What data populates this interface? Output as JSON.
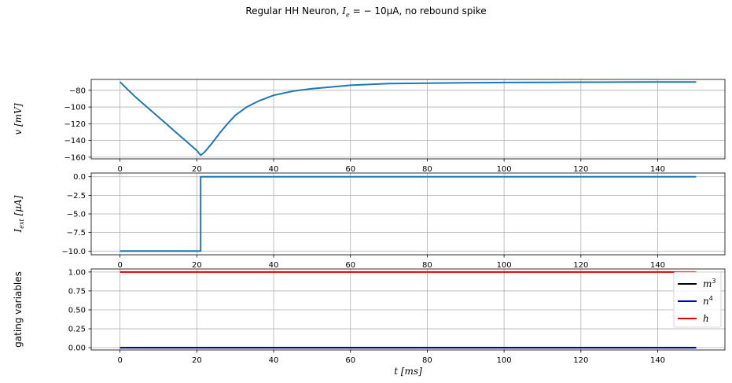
{
  "figure": {
    "title_prefix": "Regular HH Neuron, ",
    "title_math": "I",
    "title_math_sub": "e",
    "title_math_rest": " = − 10μA",
    "title_suffix": ", no rebound spike",
    "xlabel_math": "t",
    "xlabel_unit": " [ms]"
  },
  "chart_data": [
    {
      "type": "line",
      "ylabel": "v [mV]",
      "ylabel_math": "v",
      "ylabel_unit": " [mV]",
      "xlim": [
        -7.5,
        157.5
      ],
      "ylim": [
        -162,
        -67
      ],
      "xticks": [
        0,
        20,
        40,
        60,
        80,
        100,
        120,
        140
      ],
      "yticks": [
        -80,
        -100,
        -120,
        -140,
        -160
      ],
      "grid": true,
      "series": [
        {
          "color": "#1f77b4",
          "x": [
            0,
            2,
            4,
            6,
            8,
            10,
            12,
            14,
            16,
            18,
            20,
            21,
            22,
            24,
            26,
            28,
            30,
            33,
            36,
            40,
            45,
            50,
            55,
            60,
            70,
            80,
            90,
            100,
            110,
            120,
            130,
            140,
            150
          ],
          "y": [
            -70,
            -79,
            -88,
            -96,
            -104,
            -112,
            -120,
            -128,
            -136,
            -144,
            -152,
            -157.7,
            -154,
            -143,
            -131,
            -120,
            -110,
            -100,
            -93,
            -86,
            -81,
            -78,
            -76,
            -74,
            -72,
            -71.5,
            -71,
            -70.7,
            -70.5,
            -70.3,
            -70.2,
            -70.1,
            -70
          ]
        }
      ]
    },
    {
      "type": "line",
      "ylabel": "I_ext [μA]",
      "ylabel_math": "I",
      "ylabel_sub": "ext",
      "ylabel_unit": " [μA]",
      "xlim": [
        -7.5,
        157.5
      ],
      "ylim": [
        -10.5,
        0.5
      ],
      "xticks": [
        0,
        20,
        40,
        60,
        80,
        100,
        120,
        140
      ],
      "yticks": [
        0.0,
        -2.5,
        -5.0,
        -7.5,
        -10.0
      ],
      "grid": true,
      "series": [
        {
          "color": "#1f77b4",
          "x": [
            0,
            21,
            21,
            150
          ],
          "y": [
            -10,
            -10,
            0,
            0
          ]
        }
      ]
    },
    {
      "type": "line",
      "ylabel": "gating variables",
      "xlim": [
        -7.5,
        157.5
      ],
      "ylim": [
        -0.03,
        1.04
      ],
      "xticks": [
        0,
        20,
        40,
        60,
        80,
        100,
        120,
        140
      ],
      "yticks": [
        1.0,
        0.75,
        0.5,
        0.25,
        0.0
      ],
      "grid": true,
      "legend": "right",
      "series": [
        {
          "name": "m³",
          "legend_base": "m",
          "legend_sup": "3",
          "color": "#000000",
          "x": [
            0,
            150
          ],
          "y": [
            0.0,
            0.0
          ]
        },
        {
          "name": "n⁴",
          "legend_base": "n",
          "legend_sup": "4",
          "color": "#0000aa",
          "x": [
            0,
            150
          ],
          "y": [
            0.0,
            0.0
          ]
        },
        {
          "name": "h",
          "legend_base": "h",
          "legend_sup": "",
          "color": "#dd0000",
          "x": [
            0,
            150
          ],
          "y": [
            1.0,
            1.0
          ]
        }
      ]
    }
  ]
}
